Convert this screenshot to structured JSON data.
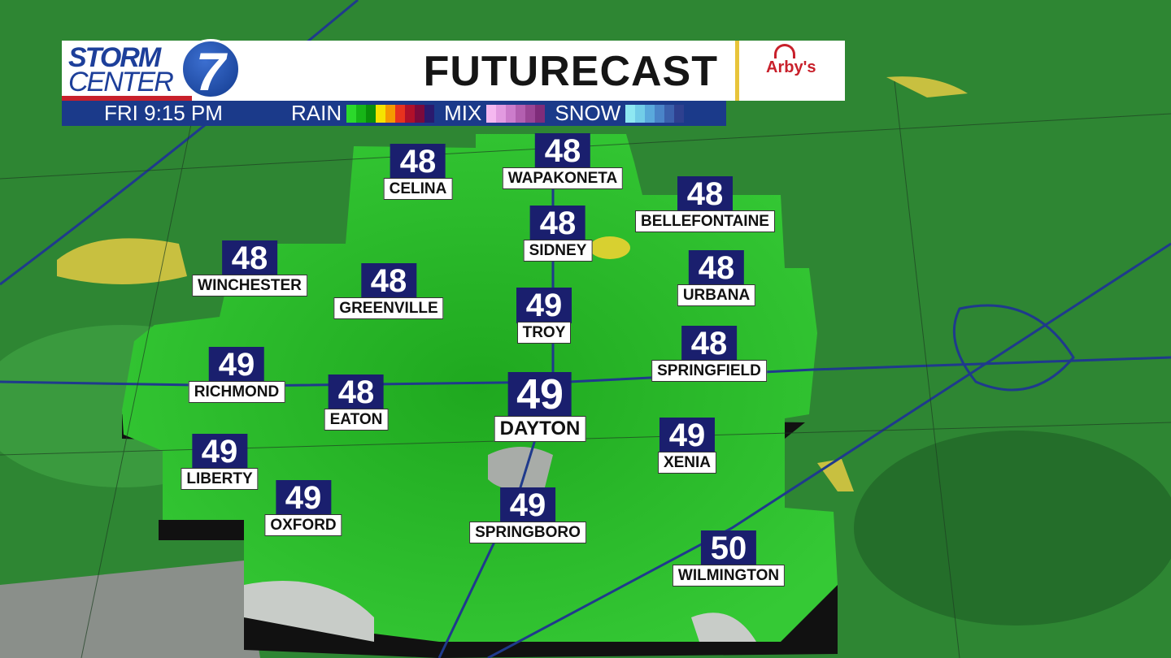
{
  "header": {
    "logo_line1": "STORM",
    "logo_line2": "CENTER",
    "logo_number": "7",
    "title": "FUTURECAST",
    "sponsor": "Arby's"
  },
  "legend_bar": {
    "time": "FRI  9:15 PM",
    "rain_label": "RAIN",
    "mix_label": "MIX",
    "snow_label": "SNOW",
    "rain_colors": [
      "#2bd92b",
      "#17b517",
      "#0a8f0a",
      "#f5e400",
      "#f59a00",
      "#e8321e",
      "#b0102a",
      "#7a0a3c",
      "#2a1a6e"
    ],
    "mix_colors": [
      "#f5b8f0",
      "#e29ae0",
      "#cc7ccb",
      "#b35fb0",
      "#9a4595",
      "#7f2c7a"
    ],
    "snow_colors": [
      "#8ee8f2",
      "#72cde8",
      "#5aa9dc",
      "#4a84c8",
      "#3b60ac",
      "#2e408f"
    ]
  },
  "cities": [
    {
      "name": "CELINA",
      "temp": "48"
    },
    {
      "name": "WAPAKONETA",
      "temp": "48"
    },
    {
      "name": "BELLEFONTAINE",
      "temp": "48"
    },
    {
      "name": "SIDNEY",
      "temp": "48"
    },
    {
      "name": "WINCHESTER",
      "temp": "48"
    },
    {
      "name": "GREENVILLE",
      "temp": "48"
    },
    {
      "name": "URBANA",
      "temp": "48"
    },
    {
      "name": "TROY",
      "temp": "49"
    },
    {
      "name": "SPRINGFIELD",
      "temp": "48"
    },
    {
      "name": "RICHMOND",
      "temp": "49"
    },
    {
      "name": "EATON",
      "temp": "48"
    },
    {
      "name": "DAYTON",
      "temp": "49"
    },
    {
      "name": "XENIA",
      "temp": "49"
    },
    {
      "name": "LIBERTY",
      "temp": "49"
    },
    {
      "name": "OXFORD",
      "temp": "49"
    },
    {
      "name": "SPRINGBORO",
      "temp": "49"
    },
    {
      "name": "WILMINGTON",
      "temp": "50"
    }
  ]
}
